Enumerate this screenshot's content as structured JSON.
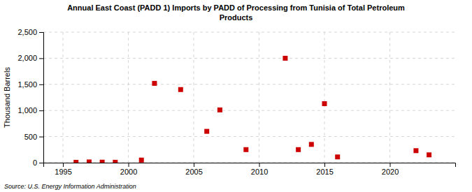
{
  "chart_data": {
    "type": "scatter",
    "title": "Annual East Coast (PADD 1) Imports by PADD of Processing from Tunisia of Total Petroleum\nProducts",
    "ylabel": "Thousand Barrels",
    "source": "Source: U.S. Energy Information Administration",
    "x": [
      1996,
      1997,
      1998,
      1999,
      2001,
      2002,
      2004,
      2006,
      2007,
      2009,
      2012,
      2013,
      2014,
      2015,
      2016,
      2022,
      2023
    ],
    "values": [
      7,
      14,
      10,
      8,
      50,
      1519,
      1400,
      600,
      1010,
      250,
      2000,
      250,
      350,
      1130,
      110,
      230,
      150
    ],
    "color": "#cc0000",
    "marker": "square",
    "xlim": [
      1993.5,
      2025
    ],
    "xticks": [
      1995,
      2000,
      2005,
      2010,
      2015,
      2020
    ],
    "ylim": [
      0,
      2500
    ],
    "yticks": [
      0,
      500,
      {
        "value": 1000,
        "label": "1,000"
      },
      {
        "value": 1500,
        "label": "1,500"
      },
      {
        "value": 2000,
        "label": "2,000"
      },
      {
        "value": 2500,
        "label": "2,500"
      }
    ],
    "grid": true
  }
}
